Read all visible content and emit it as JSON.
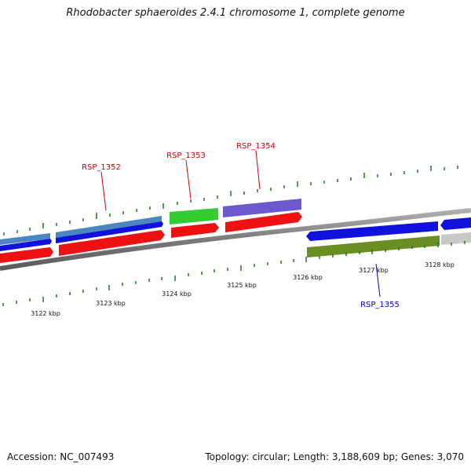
{
  "title": "Rhodobacter sphaeroides 2.4.1 chromosome 1, complete genome",
  "accession": "Accession: NC_007493",
  "summary": "Topology: circular; Length: 3,188,609 bp; Genes: 3,070",
  "kbp_labels": [
    "3122 kbp",
    "3123 kbp",
    "3124 kbp",
    "3125 kbp",
    "3126 kbp",
    "3127 kbp",
    "3128 kbp"
  ],
  "gene_labels": {
    "rsp_1352": "RSP_1352",
    "rsp_1353": "RSP_1353",
    "rsp_1354": "RSP_1354",
    "rsp_1355": "RSP_1355"
  },
  "colors": {
    "forward_label": "#cc0000",
    "reverse_label": "#0000cc",
    "tick": "#1a7a1a",
    "backbone": "#8a8a8a",
    "red_cds": "#ee1111",
    "blue_cds": "#1111dd",
    "steel_blue": "#4a86c0",
    "green": "#33cc33",
    "purple": "#6a5acd",
    "olive": "#6b8e23",
    "gray": "#c8c8c8"
  }
}
